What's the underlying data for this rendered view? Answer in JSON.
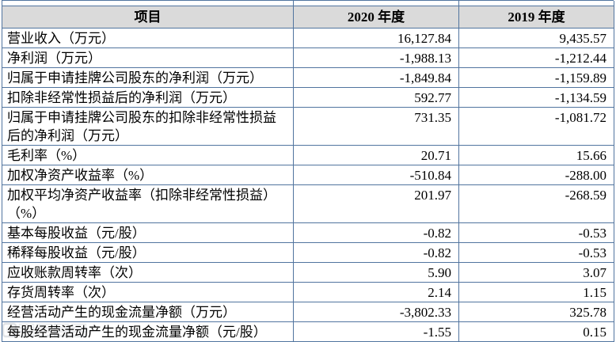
{
  "colors": {
    "border": "#51749f",
    "header_bg": "#dadada",
    "watermark_gray": "#b6bcc4"
  },
  "watermark": {
    "symbol": "©"
  },
  "table": {
    "headers": {
      "item": "项目",
      "y2020": "2020 年度",
      "y2019": "2019 年度"
    },
    "rows": [
      {
        "item": "营业收入（万元）",
        "y2020": "16,127.84",
        "y2019": "9,435.57"
      },
      {
        "item": "净利润（万元）",
        "y2020": "-1,988.13",
        "y2019": "-1,212.44"
      },
      {
        "item": "归属于申请挂牌公司股东的净利润（万元）",
        "y2020": "-1,849.84",
        "y2019": "-1,159.89"
      },
      {
        "item": "扣除非经常性损益后的净利润（万元）",
        "y2020": "592.77",
        "y2019": "-1,134.59"
      },
      {
        "item": "归属于申请挂牌公司股东的扣除非经常性损益\n后的净利润（万元）",
        "y2020": "731.35",
        "y2019": "-1,081.72"
      },
      {
        "item": "毛利率（%）",
        "y2020": "20.71",
        "y2019": "15.66"
      },
      {
        "item": "加权净资产收益率（%）",
        "y2020": "-510.84",
        "y2019": "-288.00"
      },
      {
        "item": "加权平均净资产收益率（扣除非经常性损益）\n（%）",
        "y2020": "201.97",
        "y2019": "-268.59"
      },
      {
        "item": "基本每股收益（元/股）",
        "y2020": "-0.82",
        "y2019": "-0.53"
      },
      {
        "item": "稀释每股收益（元/股）",
        "y2020": "-0.82",
        "y2019": "-0.53"
      },
      {
        "item": "应收账款周转率（次）",
        "y2020": "5.90",
        "y2019": "3.07"
      },
      {
        "item": "存货周转率（次）",
        "y2020": "2.14",
        "y2019": "1.15"
      },
      {
        "item": "经营活动产生的现金流量净额（万元）",
        "y2020": "-3,802.33",
        "y2019": "325.78"
      },
      {
        "item": "每股经营活动产生的现金流量净额（元/股）",
        "y2020": "-1.55",
        "y2019": "0.15"
      }
    ]
  }
}
